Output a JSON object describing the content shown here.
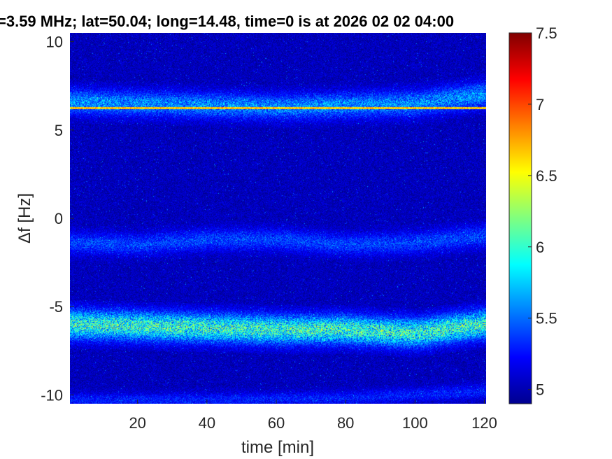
{
  "chart_data": {
    "type": "heatmap",
    "title": "=3.59 MHz;  lat=50.04; long=14.48, time=0 is at 2026 02 02 04:00",
    "xlabel": "time [min]",
    "ylabel": "Δf [Hz]",
    "xlim": [
      0.5,
      120.5
    ],
    "ylim": [
      -10.5,
      10.5
    ],
    "x_ticks": [
      20,
      40,
      60,
      80,
      100,
      120
    ],
    "x_tick_labels": [
      "20",
      "40",
      "60",
      "80",
      "100",
      "120"
    ],
    "y_ticks": [
      -10,
      -5,
      0,
      5,
      10
    ],
    "y_tick_labels": [
      "-10",
      "-5",
      "0",
      "5",
      "10"
    ],
    "colorbar": {
      "range": [
        4.9,
        7.5
      ],
      "ticks": [
        5,
        5.5,
        6,
        6.5,
        7,
        7.5
      ],
      "tick_labels": [
        "5",
        "5.5",
        "6",
        "6.5",
        "7",
        "7.5"
      ],
      "colormap": "jet"
    },
    "features": [
      {
        "name": "carrier-line",
        "freq_hz": 6.25,
        "t_start": 0.5,
        "t_end": 120.5,
        "value": 6.9
      },
      {
        "name": "band-upper",
        "center_hz": [
          [
            0,
            6.6
          ],
          [
            20,
            6.5
          ],
          [
            40,
            6.4
          ],
          [
            60,
            6.3
          ],
          [
            80,
            6.4
          ],
          [
            100,
            6.5
          ],
          [
            120,
            7.0
          ]
        ],
        "spread_hz": 0.7,
        "value": 5.6
      },
      {
        "name": "band-middle",
        "center_hz": [
          [
            0,
            -1.4
          ],
          [
            20,
            -1.5
          ],
          [
            40,
            -1.2
          ],
          [
            60,
            -1.2
          ],
          [
            80,
            -1.5
          ],
          [
            100,
            -1.4
          ],
          [
            120,
            -1.0
          ]
        ],
        "spread_hz": 0.6,
        "value": 5.4
      },
      {
        "name": "band-lower",
        "center_hz": [
          [
            0,
            -6.0
          ],
          [
            20,
            -6.1
          ],
          [
            40,
            -6.2
          ],
          [
            60,
            -6.3
          ],
          [
            80,
            -6.3
          ],
          [
            100,
            -6.5
          ],
          [
            120,
            -6.0
          ]
        ],
        "spread_hz": 0.8,
        "value": 6.0
      },
      {
        "name": "band-bottom",
        "center_hz": [
          [
            0,
            -10.3
          ],
          [
            40,
            -10.3
          ],
          [
            80,
            -10.2
          ],
          [
            100,
            -10.0
          ],
          [
            120,
            -9.8
          ]
        ],
        "spread_hz": 0.4,
        "value": 5.3
      }
    ],
    "background_value": 5.05,
    "grid": false
  }
}
